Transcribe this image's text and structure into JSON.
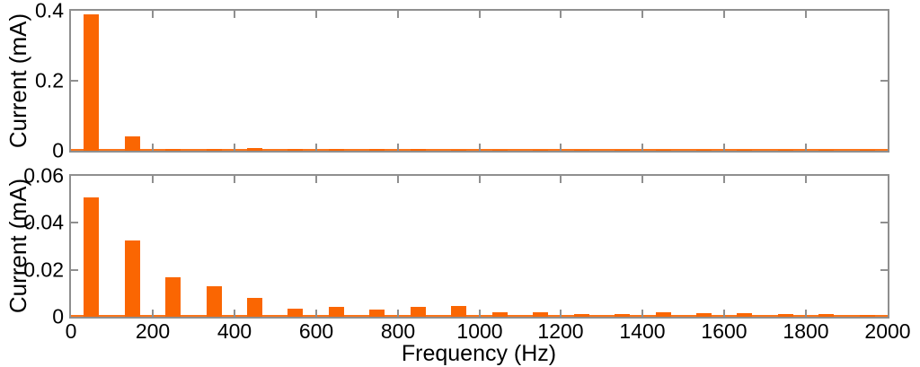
{
  "figure": {
    "xlabel": "Frequency (Hz)",
    "background_color": "#ffffff",
    "bar_color": "#fa6602",
    "axis_color": "#8f8f8f",
    "text_color": "#000000",
    "legend": "none",
    "grid": "off"
  },
  "chart_data": [
    {
      "type": "bar",
      "title": "",
      "ylabel": "Current (mA)",
      "xlabel": "",
      "ylim": [
        0,
        0.4
      ],
      "xlim": [
        0,
        2000
      ],
      "yticks": [
        0,
        0.2,
        0.4
      ],
      "ytick_labels": [
        "0",
        "0.2",
        "0.4"
      ],
      "xticks": [
        0,
        200,
        400,
        600,
        800,
        1000,
        1200,
        1400,
        1600,
        1800,
        2000
      ],
      "xtick_labels": [],
      "show_xtick_labels": false,
      "x": [
        50,
        150,
        250,
        350,
        450,
        550,
        650,
        750,
        850,
        950,
        1050,
        1150,
        1250,
        1350,
        1450,
        1550,
        1650,
        1750,
        1850,
        1950
      ],
      "values": [
        0.39,
        0.042,
        0.006,
        0.005,
        0.0075,
        0.004,
        0.005,
        0.004,
        0.004,
        0.0035,
        0.001,
        0.001,
        0.0008,
        0.001,
        0.001,
        0.0008,
        0.001,
        0.0008,
        0.001,
        0.0005
      ]
    },
    {
      "type": "bar",
      "title": "",
      "ylabel": "Current (mA)",
      "xlabel": "Frequency (Hz)",
      "ylim": [
        0,
        0.06
      ],
      "xlim": [
        0,
        2000
      ],
      "yticks": [
        0,
        0.02,
        0.04,
        0.06
      ],
      "ytick_labels": [
        "0",
        "0.02",
        "0.04",
        "0.06"
      ],
      "xticks": [
        0,
        200,
        400,
        600,
        800,
        1000,
        1200,
        1400,
        1600,
        1800,
        2000
      ],
      "xtick_labels": [
        "0",
        "200",
        "400",
        "600",
        "800",
        "1000",
        "1200",
        "1400",
        "1600",
        "1800",
        "2000"
      ],
      "show_xtick_labels": true,
      "x": [
        50,
        150,
        250,
        350,
        450,
        550,
        650,
        750,
        850,
        950,
        1050,
        1150,
        1250,
        1350,
        1450,
        1550,
        1650,
        1750,
        1850,
        1950
      ],
      "values": [
        0.051,
        0.0325,
        0.017,
        0.013,
        0.008,
        0.0035,
        0.0042,
        0.003,
        0.0042,
        0.0045,
        0.002,
        0.002,
        0.001,
        0.0012,
        0.0018,
        0.0015,
        0.0017,
        0.001,
        0.001,
        0.0006
      ]
    }
  ]
}
